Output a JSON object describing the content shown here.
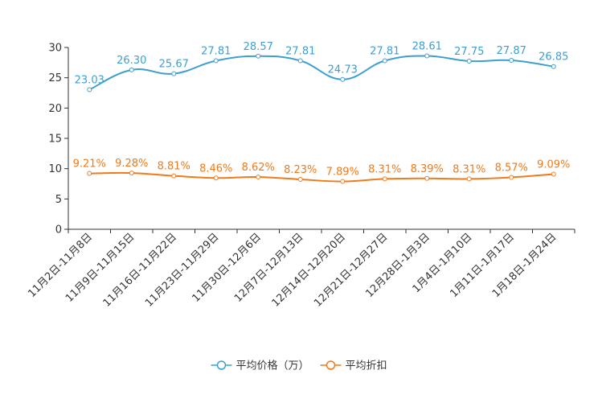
{
  "chart_data": {
    "type": "line",
    "categories": [
      "11月2日-11月8日",
      "11月9日-11月15日",
      "11月16日-11月22日",
      "11月23日-11月29日",
      "11月30日-12月6日",
      "12月7日-12月13日",
      "12月14日-12月20日",
      "12月21日-12月27日",
      "12月28日-1月3日",
      "1月4日-1月10日",
      "1月11日-1月17日",
      "1月18日-1月24日"
    ],
    "ylim": [
      0,
      30
    ],
    "yticks": [
      0,
      5,
      10,
      15,
      20,
      25,
      30
    ],
    "series": [
      {
        "name": "平均价格（万）",
        "color": "#3d9fcf",
        "values": [
          23.03,
          26.3,
          25.67,
          27.81,
          28.57,
          27.81,
          24.73,
          27.81,
          28.61,
          27.75,
          27.87,
          26.85
        ],
        "labels": [
          "23.03",
          "26.30",
          "25.67",
          "27.81",
          "28.57",
          "27.81",
          "24.73",
          "27.81",
          "28.61",
          "27.75",
          "27.87",
          "26.85"
        ]
      },
      {
        "name": "平均折扣",
        "color": "#f07a1a",
        "values": [
          9.21,
          9.28,
          8.81,
          8.46,
          8.62,
          8.23,
          7.89,
          8.31,
          8.39,
          8.31,
          8.57,
          9.09
        ],
        "labels": [
          "9.21%",
          "9.28%",
          "8.81%",
          "8.46%",
          "8.62%",
          "8.23%",
          "7.89%",
          "8.31%",
          "8.39%",
          "8.31%",
          "8.57%",
          "9.09%"
        ]
      }
    ]
  }
}
